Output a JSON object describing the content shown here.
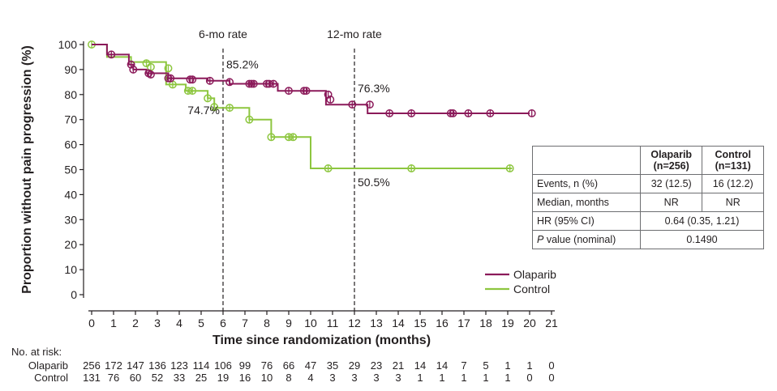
{
  "chart_data": {
    "type": "line",
    "subtype": "kaplan-meier",
    "ylabel": "Proportion without pain progression (%)",
    "xlabel": "Time since randomization (months)",
    "xlim": [
      0,
      21
    ],
    "ylim": [
      0,
      100
    ],
    "x_ticks": [
      0,
      1,
      2,
      3,
      4,
      5,
      6,
      7,
      8,
      9,
      10,
      11,
      12,
      13,
      14,
      15,
      16,
      17,
      18,
      19,
      20,
      21
    ],
    "y_ticks": [
      0,
      10,
      20,
      30,
      40,
      50,
      60,
      70,
      80,
      90,
      100
    ],
    "reference_lines": [
      {
        "x": 6,
        "label": "6-mo rate"
      },
      {
        "x": 12,
        "label": "12-mo rate"
      }
    ],
    "annotations": [
      {
        "text": "85.2%",
        "series": "Olaparib",
        "x": 6,
        "y": 85.2
      },
      {
        "text": "74.7%",
        "series": "Control",
        "x": 6,
        "y": 74.7
      },
      {
        "text": "76.3%",
        "series": "Olaparib",
        "x": 12,
        "y": 76.3
      },
      {
        "text": "50.5%",
        "series": "Control",
        "x": 12,
        "y": 50.5
      }
    ],
    "series": [
      {
        "name": "Olaparib",
        "color": "#8b1a5a",
        "step_x": [
          0,
          0.7,
          0.7,
          1.7,
          1.7,
          1.9,
          1.9,
          2.5,
          2.5,
          3.5,
          3.5,
          5.3,
          5.3,
          6.3,
          6.3,
          8.5,
          8.5,
          10.7,
          10.7,
          12.6,
          12.6,
          20
        ],
        "step_y": [
          100,
          100,
          96,
          96,
          92,
          92,
          90,
          90,
          88.5,
          88.5,
          86.5,
          86.5,
          85.5,
          85.5,
          84.3,
          84.3,
          81.5,
          81.5,
          76,
          76,
          72.5,
          72.5
        ],
        "censored": [
          [
            0.9,
            96
          ],
          [
            1.8,
            92
          ],
          [
            1.9,
            90
          ],
          [
            2.6,
            88.5
          ],
          [
            2.7,
            88
          ],
          [
            3.5,
            86.5
          ],
          [
            3.6,
            86.5
          ],
          [
            4.5,
            86
          ],
          [
            4.6,
            86
          ],
          [
            5.4,
            85.5
          ],
          [
            6.3,
            85
          ],
          [
            7.2,
            84.3
          ],
          [
            7.3,
            84.3
          ],
          [
            7.4,
            84.3
          ],
          [
            8.0,
            84.3
          ],
          [
            8.1,
            84.3
          ],
          [
            8.3,
            84.3
          ],
          [
            9.0,
            81.5
          ],
          [
            9.7,
            81.5
          ],
          [
            9.8,
            81.5
          ],
          [
            10.8,
            80
          ],
          [
            10.9,
            78
          ],
          [
            11.9,
            76
          ],
          [
            12.7,
            76
          ],
          [
            13.6,
            72.5
          ],
          [
            14.6,
            72.5
          ],
          [
            16.4,
            72.5
          ],
          [
            16.5,
            72.5
          ],
          [
            17.2,
            72.5
          ],
          [
            18.2,
            72.5
          ],
          [
            20.1,
            72.5
          ]
        ]
      },
      {
        "name": "Control",
        "color": "#8dc63f",
        "step_x": [
          0,
          0.7,
          0.7,
          1.8,
          1.8,
          3.4,
          3.4,
          4.3,
          4.3,
          5.3,
          5.3,
          5.6,
          5.6,
          7.2,
          7.2,
          8.2,
          8.2,
          10,
          10,
          19.2
        ],
        "step_y": [
          100,
          100,
          95,
          95,
          93,
          93,
          84,
          84,
          81.5,
          81.5,
          78.5,
          78.5,
          74.7,
          74.7,
          70,
          70,
          63,
          63,
          50.5,
          50.5
        ],
        "censored": [
          [
            0,
            100
          ],
          [
            2.5,
            92.5
          ],
          [
            2.7,
            91
          ],
          [
            3.5,
            90.5
          ],
          [
            3.7,
            84
          ],
          [
            4.4,
            81.5
          ],
          [
            4.6,
            81.5
          ],
          [
            5.3,
            78.5
          ],
          [
            5.6,
            75
          ],
          [
            6.3,
            74.7
          ],
          [
            7.2,
            70
          ],
          [
            8.2,
            63
          ],
          [
            9.0,
            63
          ],
          [
            9.2,
            63
          ],
          [
            10.8,
            50.5
          ],
          [
            14.6,
            50.5
          ],
          [
            19.1,
            50.5
          ]
        ]
      }
    ],
    "legend": [
      {
        "label": "Olaparib",
        "color": "#8b1a5a"
      },
      {
        "label": "Control",
        "color": "#8dc63f"
      }
    ],
    "legend_placement": "right, below table",
    "risk_table": {
      "title": "No. at risk:",
      "times": [
        0,
        1,
        2,
        3,
        4,
        5,
        6,
        7,
        8,
        9,
        10,
        11,
        12,
        13,
        14,
        15,
        16,
        17,
        18,
        19,
        20,
        21
      ],
      "rows": [
        {
          "name": "Olaparib",
          "values": [
            "256",
            "172",
            "147",
            "136",
            "123",
            "114",
            "106",
            "99",
            "76",
            "66",
            "47",
            "35",
            "29",
            "23",
            "21",
            "14",
            "14",
            "7",
            "5",
            "1",
            "1",
            "0"
          ]
        },
        {
          "name": "Control",
          "values": [
            "131",
            "76",
            "60",
            "52",
            "33",
            "25",
            "19",
            "16",
            "10",
            "8",
            "4",
            "3",
            "3",
            "3",
            "3",
            "1",
            "1",
            "1",
            "1",
            "1",
            "0",
            "0"
          ]
        }
      ]
    }
  },
  "stats_table": {
    "headers": [
      "",
      "Olaparib\n(n=256)",
      "Control\n(n=131)"
    ],
    "header_olaparib": "Olaparib",
    "header_olaparib_n": "(n=256)",
    "header_control": "Control",
    "header_control_n": "(n=131)",
    "rows": [
      {
        "label": "Events, n (%)",
        "olaparib": "32 (12.5)",
        "control": "16 (12.2)"
      },
      {
        "label": "Median, months",
        "olaparib": "NR",
        "control": "NR"
      },
      {
        "label": "HR (95% CI)",
        "combined": "0.64 (0.35, 1.21)"
      },
      {
        "label_italic": "P",
        "label_rest": " value (nominal)",
        "combined": "0.1490"
      }
    ]
  }
}
